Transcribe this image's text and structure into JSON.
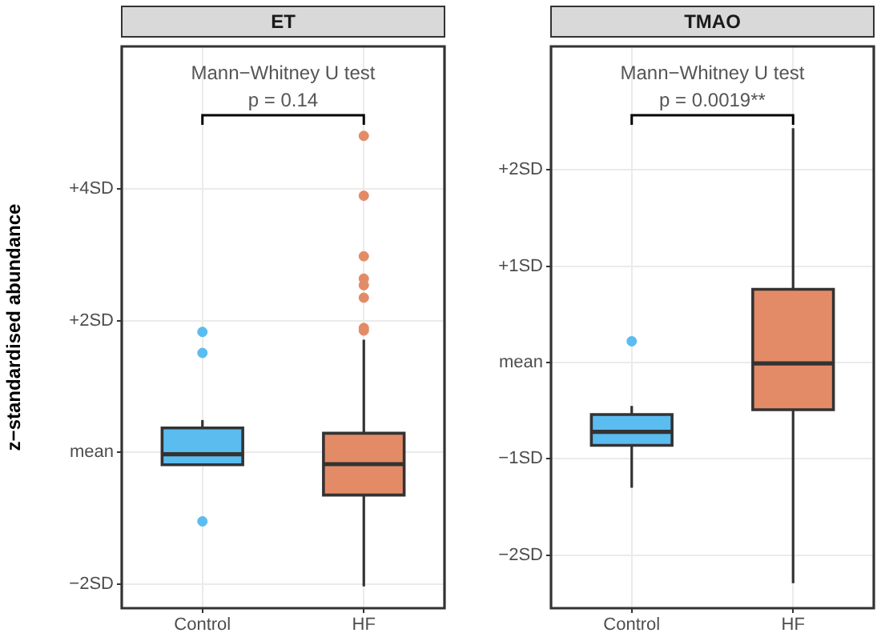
{
  "chart_data": [
    {
      "type": "box",
      "title": "ET",
      "ylabel": "z−standardised abundance",
      "categories": [
        "Control",
        "HF"
      ],
      "colors": [
        "#5bbcf0",
        "#e38b67"
      ],
      "boxes": [
        {
          "low": -0.19,
          "q1": -0.19,
          "median": -0.03,
          "q3": 0.37,
          "high": 0.49,
          "outliers": [
            1.83,
            1.51,
            -1.05
          ]
        },
        {
          "low": -2.04,
          "q1": -0.65,
          "median": -0.18,
          "q3": 0.29,
          "high": 1.71,
          "outliers": [
            4.81,
            3.9,
            2.98,
            2.64,
            2.54,
            2.35,
            1.89,
            1.85
          ]
        }
      ],
      "ylim": [
        -2.37,
        6.17
      ],
      "yticks": [
        {
          "value": -2,
          "label": "−2SD"
        },
        {
          "value": 0,
          "label": "mean"
        },
        {
          "value": 2,
          "label": "+2SD"
        },
        {
          "value": 4,
          "label": "+4SD"
        }
      ],
      "annotations": [
        "Mann−Whitney U test",
        "p = 0.14"
      ],
      "grid": true,
      "legend": false
    },
    {
      "type": "box",
      "title": "TMAO",
      "categories": [
        "Control",
        "HF"
      ],
      "colors": [
        "#5bbcf0",
        "#e38b67"
      ],
      "boxes": [
        {
          "low": -1.3,
          "q1": -0.86,
          "median": -0.72,
          "q3": -0.54,
          "high": -0.45,
          "outliers": [
            0.22
          ]
        },
        {
          "low": -2.29,
          "q1": -0.49,
          "median": -0.01,
          "q3": 0.76,
          "high": 2.43
        }
      ],
      "ylim": [
        -2.55,
        3.28
      ],
      "yticks": [
        {
          "value": -2,
          "label": "−2SD"
        },
        {
          "value": -1,
          "label": "−1SD"
        },
        {
          "value": 0,
          "label": "mean"
        },
        {
          "value": 1,
          "label": "+1SD"
        },
        {
          "value": 2,
          "label": "+2SD"
        }
      ],
      "annotations": [
        "Mann−Whitney U test",
        "p = 0.0019**"
      ],
      "grid": true,
      "legend": false
    }
  ]
}
